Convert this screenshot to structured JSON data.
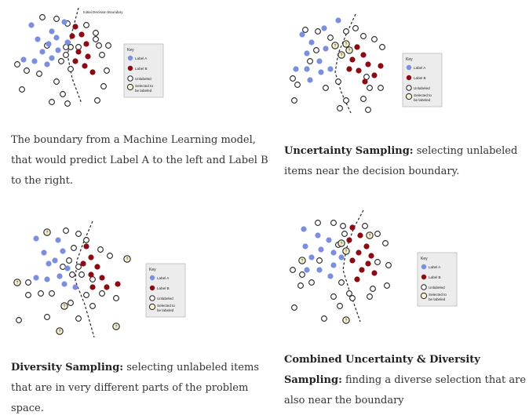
{
  "colors": {
    "label_a": "#7b8ee0",
    "label_b": "#8b0a14",
    "unlabeled": "#ffffff",
    "selected": "#f6f1cf",
    "stroke": "#222222",
    "key_bg": "#ececec"
  },
  "key": {
    "title": "Key",
    "label_a": "Label A",
    "label_b": "Label B",
    "unlabeled": "Unlabeled",
    "selected_line1": "Selected to",
    "selected_line2": "be labeled"
  },
  "panels": [
    {
      "id": "initial",
      "boundary_label": "Initial Decision Boundary",
      "caption_bold": "",
      "caption_text": "The boundary from a Machine Learning model, that would predict Label A to the left and Label B to the right."
    },
    {
      "id": "uncertainty",
      "caption_bold": "Uncertainty Sampling:",
      "caption_text": " selecting unlabeled items near the decision boundary."
    },
    {
      "id": "diversity",
      "caption_bold": "Diversity Sampling:",
      "caption_text": " selecting unlabeled items that are in very different parts of the problem space."
    },
    {
      "id": "combined",
      "caption_bold": "Combined Uncertainty & Diversity Sampling:",
      "caption_text": " finding a diverse selection that are also near the boundary"
    }
  ]
}
